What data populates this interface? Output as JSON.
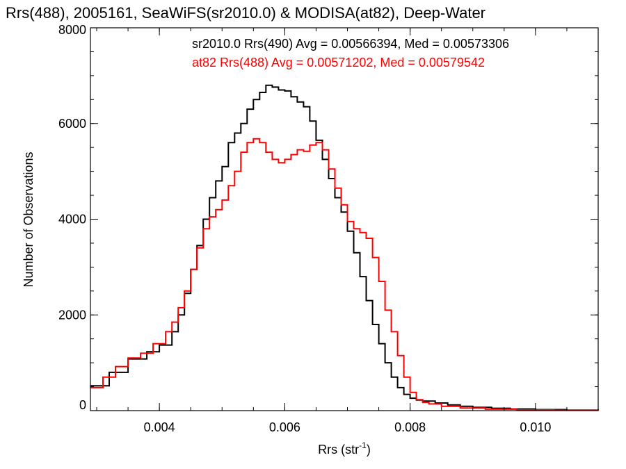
{
  "chart_data": {
    "type": "line",
    "title": "Rrs(488), 2005161, SeaWiFS(sr2010.0) & MODISA(at82), Deep-Water",
    "xlabel": "Rrs (str",
    "xlabel_sup": "-1",
    "xlabel_close": ")",
    "ylabel": "Number of Observations",
    "xlim": [
      0.0029,
      0.011
    ],
    "ylim": [
      0,
      8000
    ],
    "xticks": [
      {
        "value": 0.004,
        "label": "0.004"
      },
      {
        "value": 0.006,
        "label": "0.006"
      },
      {
        "value": 0.008,
        "label": "0.008"
      },
      {
        "value": 0.01,
        "label": "0.010"
      }
    ],
    "yticks": [
      {
        "value": 0,
        "label": "0"
      },
      {
        "value": 2000,
        "label": "2000"
      },
      {
        "value": 4000,
        "label": "4000"
      },
      {
        "value": 6000,
        "label": "6000"
      },
      {
        "value": 8000,
        "label": "8000"
      }
    ],
    "grid": false,
    "step": true,
    "annotations": [
      {
        "text": "sr2010.0 Rrs(490) Avg = 0.00566394, Med = 0.00573306",
        "color": "#000000"
      },
      {
        "text": "at82 Rrs(488) Avg = 0.00571202, Med = 0.00579542",
        "color": "#ff0000"
      }
    ],
    "series": [
      {
        "color": "#000000",
        "points": [
          [
            0.0029,
            520
          ],
          [
            0.0032,
            800
          ],
          [
            0.0035,
            1080
          ],
          [
            0.0038,
            1230
          ],
          [
            0.004,
            1370
          ],
          [
            0.0042,
            1650
          ],
          [
            0.0043,
            2000
          ],
          [
            0.0044,
            2450
          ],
          [
            0.0045,
            2950
          ],
          [
            0.0046,
            3450
          ],
          [
            0.0047,
            4000
          ],
          [
            0.0048,
            4450
          ],
          [
            0.0049,
            4800
          ],
          [
            0.005,
            5100
          ],
          [
            0.0051,
            5600
          ],
          [
            0.0052,
            5800
          ],
          [
            0.0053,
            6000
          ],
          [
            0.0054,
            6300
          ],
          [
            0.0055,
            6500
          ],
          [
            0.0056,
            6650
          ],
          [
            0.0057,
            6800
          ],
          [
            0.0058,
            6760
          ],
          [
            0.0059,
            6700
          ],
          [
            0.006,
            6680
          ],
          [
            0.0061,
            6560
          ],
          [
            0.0062,
            6450
          ],
          [
            0.0063,
            6350
          ],
          [
            0.0064,
            6050
          ],
          [
            0.0065,
            5650
          ],
          [
            0.0066,
            5250
          ],
          [
            0.0067,
            4850
          ],
          [
            0.0068,
            4450
          ],
          [
            0.0069,
            4150
          ],
          [
            0.007,
            3750
          ],
          [
            0.0071,
            3300
          ],
          [
            0.0072,
            2800
          ],
          [
            0.0073,
            2300
          ],
          [
            0.0074,
            1800
          ],
          [
            0.0075,
            1400
          ],
          [
            0.0076,
            1000
          ],
          [
            0.0077,
            700
          ],
          [
            0.0078,
            480
          ],
          [
            0.0079,
            340
          ],
          [
            0.008,
            260
          ],
          [
            0.0081,
            220
          ],
          [
            0.0082,
            200
          ],
          [
            0.0084,
            160
          ],
          [
            0.0086,
            120
          ],
          [
            0.0088,
            90
          ],
          [
            0.009,
            70
          ],
          [
            0.0093,
            50
          ],
          [
            0.0096,
            35
          ],
          [
            0.01,
            22
          ],
          [
            0.0105,
            12
          ],
          [
            0.011,
            6
          ]
        ]
      },
      {
        "color": "#ff0000",
        "points": [
          [
            0.0029,
            480
          ],
          [
            0.0031,
            700
          ],
          [
            0.0033,
            920
          ],
          [
            0.0035,
            1100
          ],
          [
            0.0037,
            1200
          ],
          [
            0.0039,
            1400
          ],
          [
            0.0041,
            1650
          ],
          [
            0.0042,
            1850
          ],
          [
            0.0043,
            2150
          ],
          [
            0.0044,
            2500
          ],
          [
            0.0045,
            2950
          ],
          [
            0.0046,
            3400
          ],
          [
            0.0047,
            3800
          ],
          [
            0.0048,
            4050
          ],
          [
            0.0049,
            4200
          ],
          [
            0.005,
            4400
          ],
          [
            0.0051,
            4700
          ],
          [
            0.0052,
            5000
          ],
          [
            0.0053,
            5400
          ],
          [
            0.0054,
            5600
          ],
          [
            0.0055,
            5680
          ],
          [
            0.0056,
            5600
          ],
          [
            0.0057,
            5400
          ],
          [
            0.0058,
            5250
          ],
          [
            0.0059,
            5180
          ],
          [
            0.006,
            5250
          ],
          [
            0.0061,
            5350
          ],
          [
            0.0062,
            5450
          ],
          [
            0.0063,
            5420
          ],
          [
            0.0064,
            5550
          ],
          [
            0.0065,
            5600
          ],
          [
            0.0066,
            5450
          ],
          [
            0.0067,
            5050
          ],
          [
            0.0068,
            4650
          ],
          [
            0.0069,
            4300
          ],
          [
            0.007,
            3950
          ],
          [
            0.0071,
            3800
          ],
          [
            0.0072,
            3720
          ],
          [
            0.0073,
            3600
          ],
          [
            0.0074,
            3200
          ],
          [
            0.0075,
            2700
          ],
          [
            0.0076,
            2100
          ],
          [
            0.0077,
            1650
          ],
          [
            0.0078,
            1150
          ],
          [
            0.0079,
            700
          ],
          [
            0.008,
            380
          ],
          [
            0.0081,
            230
          ],
          [
            0.0082,
            170
          ],
          [
            0.0083,
            140
          ],
          [
            0.0085,
            90
          ],
          [
            0.0088,
            55
          ],
          [
            0.0092,
            30
          ],
          [
            0.0097,
            15
          ],
          [
            0.0103,
            7
          ],
          [
            0.011,
            3
          ]
        ]
      }
    ]
  }
}
